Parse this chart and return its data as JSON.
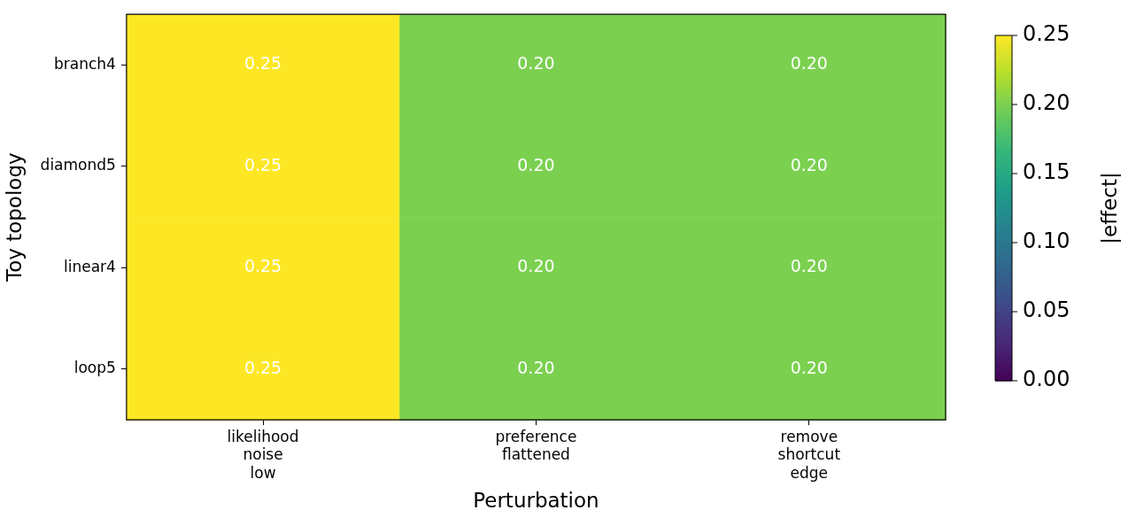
{
  "chart_data": {
    "type": "heatmap",
    "xlabel": "Perturbation",
    "ylabel": "Toy topology",
    "clabel": "|effect|",
    "categories": [
      "likelihood noise low",
      "preference flattened",
      "remove shortcut edge"
    ],
    "y_categories": [
      "branch4",
      "diamond5",
      "linear4",
      "loop5"
    ],
    "cells": [
      [
        0.25,
        0.2,
        0.2
      ],
      [
        0.25,
        0.2,
        0.2
      ],
      [
        0.25,
        0.2,
        0.2
      ],
      [
        0.25,
        0.2,
        0.2
      ]
    ],
    "cell_labels": [
      [
        "0.25",
        "0.20",
        "0.20"
      ],
      [
        "0.25",
        "0.20",
        "0.20"
      ],
      [
        "0.25",
        "0.20",
        "0.20"
      ],
      [
        "0.25",
        "0.20",
        "0.20"
      ]
    ],
    "clim": [
      0,
      0.25
    ],
    "cticks": [
      {
        "value": 0,
        "label": "0.00"
      },
      {
        "value": 0.05,
        "label": "0.05"
      },
      {
        "value": 0.1,
        "label": "0.10"
      },
      {
        "value": 0.15,
        "label": "0.15"
      },
      {
        "value": 0.2,
        "label": "0.20"
      },
      {
        "value": 0.25,
        "label": "0.25"
      }
    ],
    "grid": false
  }
}
